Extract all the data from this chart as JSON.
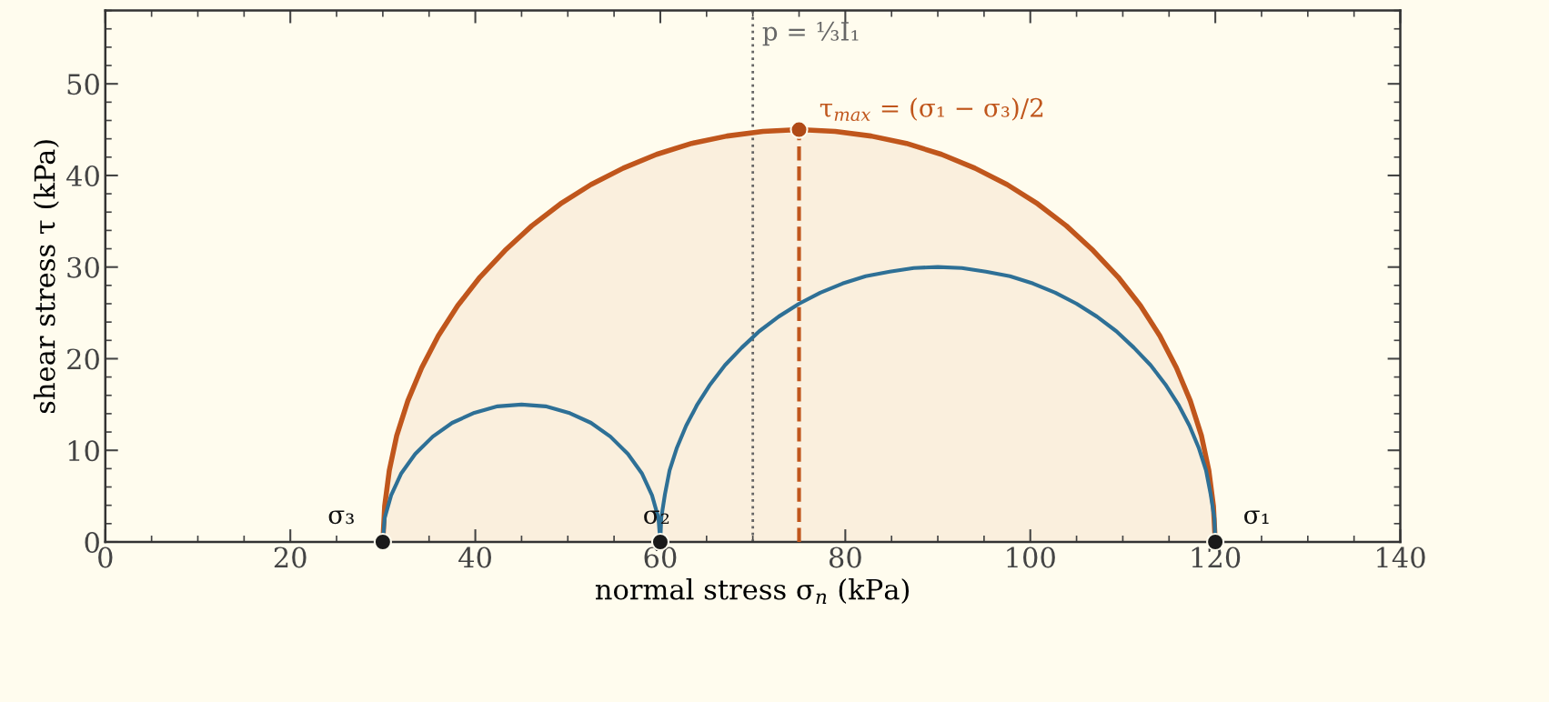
{
  "chart_data": {
    "type": "line",
    "xlabel": "normal stress σ$_{n}$ (kPa)",
    "ylabel": "shear stress τ (kPa)",
    "xlim": [
      0,
      140
    ],
    "xticks": [
      0,
      20,
      40,
      60,
      80,
      100,
      120,
      140
    ],
    "ylim": [
      0,
      58
    ],
    "yticks": [
      0,
      10,
      20,
      30,
      40,
      50
    ],
    "grid": false,
    "series": [
      {
        "type": "area",
        "color": "#c0561c",
        "x": [
          30,
          30.2,
          30.7,
          31.5,
          32.7,
          34.2,
          36,
          38.1,
          40.5,
          43.2,
          46.1,
          49.2,
          52.5,
          56,
          59.6,
          63.4,
          67.2,
          71.1,
          75,
          78.9,
          82.8,
          86.6,
          90.4,
          94,
          97.5,
          100.8,
          103.9,
          106.8,
          109.5,
          111.9,
          114,
          115.8,
          117.3,
          118.5,
          119.3,
          119.8,
          120
        ],
        "values": [
          0,
          3.9,
          7.8,
          11.6,
          15.4,
          19,
          22.5,
          25.8,
          28.9,
          31.8,
          34.5,
          36.9,
          39,
          40.8,
          42.3,
          43.5,
          44.3,
          44.8,
          45,
          44.8,
          44.3,
          43.5,
          42.3,
          40.8,
          39,
          36.9,
          34.5,
          31.8,
          28.9,
          25.8,
          22.5,
          19,
          15.4,
          11.6,
          7.8,
          3.9,
          0
        ]
      },
      {
        "color": "#2e7096",
        "x": [
          30,
          30.2,
          30.9,
          32,
          33.5,
          35.4,
          37.5,
          39.9,
          42.4,
          45,
          47.6,
          50.1,
          52.5,
          54.6,
          56.5,
          58,
          59.1,
          59.8,
          60
        ],
        "values": [
          0,
          2.6,
          5.1,
          7.5,
          9.6,
          11.5,
          13,
          14.1,
          14.8,
          15,
          14.8,
          14.1,
          13,
          11.5,
          9.6,
          7.5,
          5.1,
          2.6,
          0
        ]
      },
      {
        "color": "#2e7096",
        "x": [
          60,
          60.1,
          60.5,
          61,
          61.8,
          62.8,
          64,
          65.4,
          67,
          68.8,
          70.7,
          72.8,
          75,
          77.3,
          79.7,
          82.2,
          84.8,
          87.4,
          90,
          92.6,
          95.2,
          97.8,
          100.3,
          102.7,
          105,
          107.2,
          109.3,
          111.2,
          113,
          114.6,
          116,
          117.2,
          118.2,
          119,
          119.5,
          119.9,
          120
        ],
        "values": [
          0,
          2.6,
          5.2,
          7.8,
          10.3,
          12.7,
          15,
          17.2,
          19.3,
          21.2,
          23,
          24.6,
          26,
          27.2,
          28.2,
          29,
          29.5,
          29.9,
          30,
          29.9,
          29.5,
          29,
          28.2,
          27.2,
          26,
          24.6,
          23,
          21.2,
          19.3,
          17.2,
          15,
          12.7,
          10.3,
          7.8,
          5.2,
          2.6,
          0
        ]
      },
      {
        "color": "#c0561c",
        "line_style": "dashed",
        "x": [
          75,
          75
        ],
        "values": [
          0,
          45
        ]
      },
      {
        "type": "scatter",
        "color": "#b04a16",
        "marker": "circle",
        "x": [
          75
        ],
        "values": [
          45
        ]
      },
      {
        "type": "scatter",
        "color": "#1a1a1a",
        "marker": "circle",
        "x": [
          30,
          60,
          120
        ],
        "values": [
          0,
          0,
          0
        ]
      }
    ],
    "ref_lines": [
      {
        "axis": "x",
        "value": 70,
        "label": "p = ⅓I₁",
        "color": "#666666",
        "line_style": "dotted"
      }
    ],
    "annotations": [
      {
        "text": "σ₃",
        "x": 30,
        "y": 0
      },
      {
        "text": "σ₂",
        "x": 60,
        "y": 0
      },
      {
        "text": "σ₁",
        "x": 120,
        "y": 0
      },
      {
        "text": "τ$_{max}$ = (σ₁ − σ₃)/2",
        "x": 75,
        "y": 45
      }
    ]
  }
}
